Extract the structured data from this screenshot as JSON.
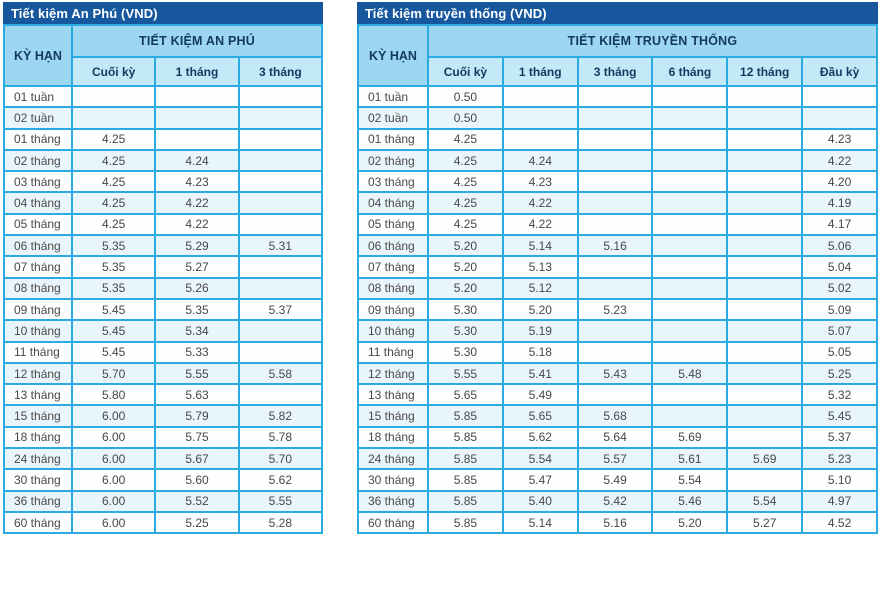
{
  "theme": {
    "title_bar_bg": "#17579E",
    "title_text": "#FFFFFF",
    "header_bg": "#9DD6F0",
    "subheader_bg": "#C3E8F8",
    "border_color": "#2AACE3",
    "row_white_bg": "#FDFEFF",
    "row_tint_bg": "#E9F5FC",
    "header_text": "#14395E",
    "term_text": "#4C4845",
    "value_text": "#474747",
    "page_bg": "#FFFFFF"
  },
  "chart_data": [
    {
      "type": "table",
      "title": "Tiết kiệm An Phú (VND)",
      "term_column_header": "KỲ HẠN",
      "group_header": "TIẾT KIỆM AN PHÚ",
      "columns": [
        "Cuối kỳ",
        "1 tháng",
        "3 tháng"
      ],
      "rows": [
        [
          "01 tuần",
          "",
          "",
          ""
        ],
        [
          "02 tuần",
          "",
          "",
          ""
        ],
        [
          "01 tháng",
          "4.25",
          "",
          ""
        ],
        [
          "02 tháng",
          "4.25",
          "4.24",
          ""
        ],
        [
          "03 tháng",
          "4.25",
          "4.23",
          ""
        ],
        [
          "04 tháng",
          "4.25",
          "4.22",
          ""
        ],
        [
          "05 tháng",
          "4.25",
          "4.22",
          ""
        ],
        [
          "06 tháng",
          "5.35",
          "5.29",
          "5.31"
        ],
        [
          "07 tháng",
          "5.35",
          "5.27",
          ""
        ],
        [
          "08 tháng",
          "5.35",
          "5.26",
          ""
        ],
        [
          "09 tháng",
          "5.45",
          "5.35",
          "5.37"
        ],
        [
          "10 tháng",
          "5.45",
          "5.34",
          ""
        ],
        [
          "11 tháng",
          "5.45",
          "5.33",
          ""
        ],
        [
          "12 tháng",
          "5.70",
          "5.55",
          "5.58"
        ],
        [
          "13 tháng",
          "5.80",
          "5.63",
          ""
        ],
        [
          "15 tháng",
          "6.00",
          "5.79",
          "5.82"
        ],
        [
          "18 tháng",
          "6.00",
          "5.75",
          "5.78"
        ],
        [
          "24 tháng",
          "6.00",
          "5.67",
          "5.70"
        ],
        [
          "30 tháng",
          "6.00",
          "5.60",
          "5.62"
        ],
        [
          "36 tháng",
          "6.00",
          "5.52",
          "5.55"
        ],
        [
          "60 tháng",
          "6.00",
          "5.25",
          "5.28"
        ]
      ]
    },
    {
      "type": "table",
      "title": "Tiết kiệm truyền thống (VND)",
      "term_column_header": "KỲ HẠN",
      "group_header": "TIẾT KIỆM TRUYỀN THỐNG",
      "columns": [
        "Cuối kỳ",
        "1 tháng",
        "3 tháng",
        "6 tháng",
        "12 tháng",
        "Đầu kỳ"
      ],
      "rows": [
        [
          "01 tuần",
          "0.50",
          "",
          "",
          "",
          "",
          ""
        ],
        [
          "02 tuần",
          "0.50",
          "",
          "",
          "",
          "",
          ""
        ],
        [
          "01 tháng",
          "4.25",
          "",
          "",
          "",
          "",
          "4.23"
        ],
        [
          "02 tháng",
          "4.25",
          "4.24",
          "",
          "",
          "",
          "4.22"
        ],
        [
          "03 tháng",
          "4.25",
          "4.23",
          "",
          "",
          "",
          "4.20"
        ],
        [
          "04 tháng",
          "4.25",
          "4.22",
          "",
          "",
          "",
          "4.19"
        ],
        [
          "05 tháng",
          "4.25",
          "4.22",
          "",
          "",
          "",
          "4.17"
        ],
        [
          "06 tháng",
          "5.20",
          "5.14",
          "5.16",
          "",
          "",
          "5.06"
        ],
        [
          "07 tháng",
          "5.20",
          "5.13",
          "",
          "",
          "",
          "5.04"
        ],
        [
          "08 tháng",
          "5.20",
          "5.12",
          "",
          "",
          "",
          "5.02"
        ],
        [
          "09 tháng",
          "5.30",
          "5.20",
          "5.23",
          "",
          "",
          "5.09"
        ],
        [
          "10 tháng",
          "5.30",
          "5.19",
          "",
          "",
          "",
          "5.07"
        ],
        [
          "11 tháng",
          "5.30",
          "5.18",
          "",
          "",
          "",
          "5.05"
        ],
        [
          "12 tháng",
          "5.55",
          "5.41",
          "5.43",
          "5.48",
          "",
          "5.25"
        ],
        [
          "13 tháng",
          "5.65",
          "5.49",
          "",
          "",
          "",
          "5.32"
        ],
        [
          "15 tháng",
          "5.85",
          "5.65",
          "5.68",
          "",
          "",
          "5.45"
        ],
        [
          "18 tháng",
          "5.85",
          "5.62",
          "5.64",
          "5.69",
          "",
          "5.37"
        ],
        [
          "24 tháng",
          "5.85",
          "5.54",
          "5.57",
          "5.61",
          "5.69",
          "5.23"
        ],
        [
          "30 tháng",
          "5.85",
          "5.47",
          "5.49",
          "5.54",
          "",
          "5.10"
        ],
        [
          "36 tháng",
          "5.85",
          "5.40",
          "5.42",
          "5.46",
          "5.54",
          "4.97"
        ],
        [
          "60 tháng",
          "5.85",
          "5.14",
          "5.16",
          "5.20",
          "5.27",
          "4.52"
        ]
      ]
    }
  ]
}
